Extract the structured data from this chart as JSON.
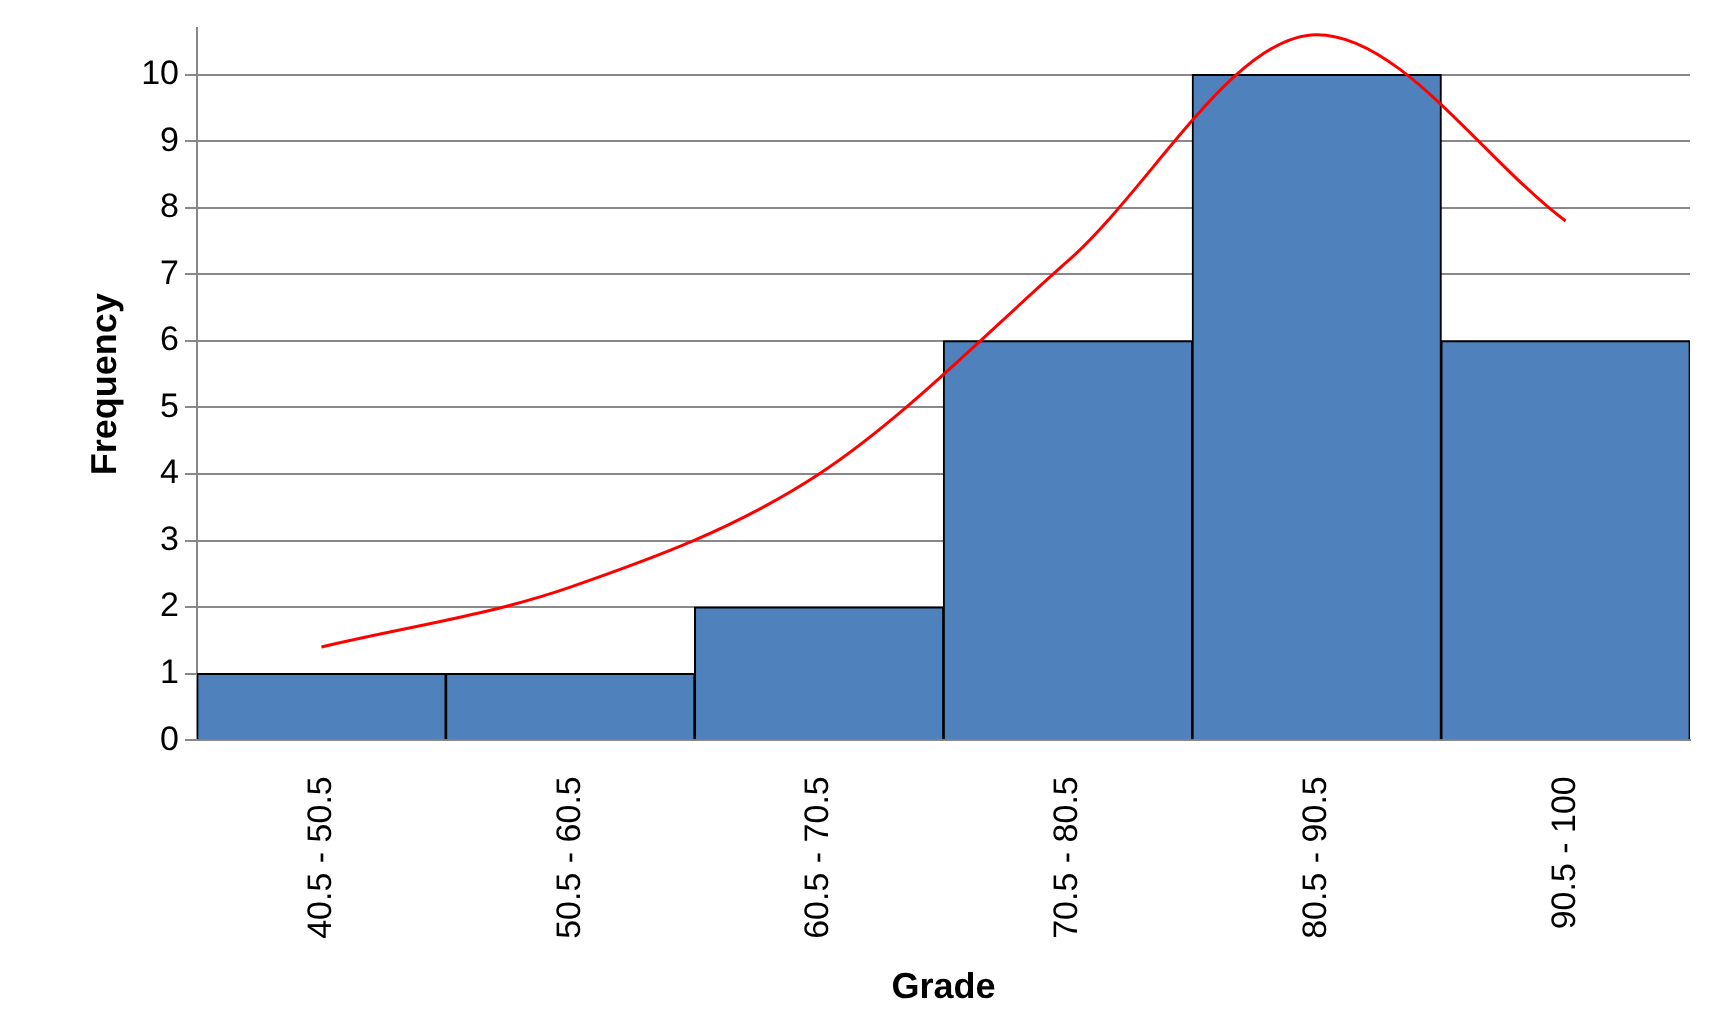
{
  "chart_data": {
    "type": "bar",
    "xlabel": "Grade",
    "ylabel": "Frequency",
    "categories": [
      "40.5 - 50.5",
      "50.5 - 60.5",
      "60.5 - 70.5",
      "70.5 - 80.5",
      "80.5 - 90.5",
      "90.5 - 100"
    ],
    "ylim": [
      0,
      10.7
    ],
    "yticks": [
      0,
      1,
      2,
      3,
      4,
      5,
      6,
      7,
      8,
      9,
      10
    ],
    "grid": "y",
    "marker": "none",
    "series": [
      {
        "color": "#4f81bd",
        "values": [
          1,
          1,
          2,
          6,
          10,
          6
        ]
      },
      {
        "type": "line",
        "color": "#ff0000",
        "values": [
          1.4,
          2.3,
          4.0,
          7.2,
          10.6,
          7.8
        ]
      }
    ]
  }
}
